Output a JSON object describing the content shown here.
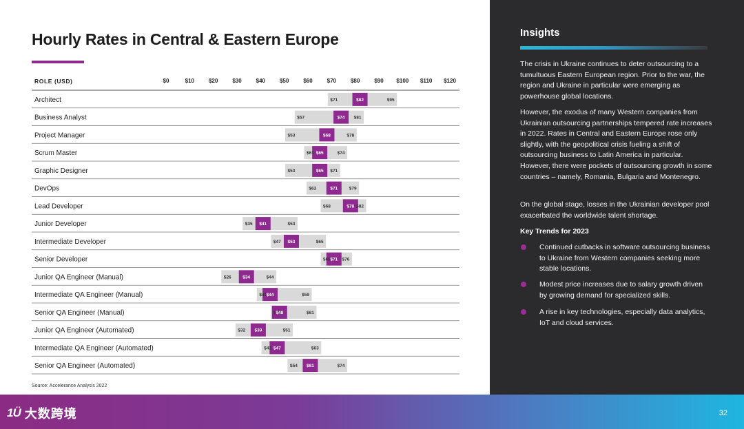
{
  "title": "Hourly Rates in Central & Eastern Europe",
  "role_header": "ROLE (USD)",
  "source": "Source: Accelerance Analysis 2022",
  "chart_data": {
    "type": "range",
    "title": "Hourly Rates in Central & Eastern Europe",
    "xlabel": "",
    "ylabel": "ROLE (USD)",
    "xlim": [
      0,
      120
    ],
    "tick_values": [
      0,
      10,
      20,
      30,
      40,
      50,
      60,
      70,
      80,
      90,
      100,
      110,
      120
    ],
    "tick_labels": [
      "$0",
      "$10",
      "$20",
      "$30",
      "$40",
      "$50",
      "$60",
      "$70",
      "$80",
      "$90",
      "$100",
      "$110",
      "$120"
    ],
    "rows": [
      {
        "role": "Architect",
        "low": 71,
        "mid": 82,
        "high": 95,
        "low_label": "$71",
        "mid_label": "$82",
        "high_label": "$95"
      },
      {
        "role": "Business Analyst",
        "low": 57,
        "mid": 74,
        "high": 81,
        "low_label": "$57",
        "mid_label": "$74",
        "high_label": "$81"
      },
      {
        "role": "Project Manager",
        "low": 53,
        "mid": 68,
        "high": 78,
        "low_label": "$53",
        "mid_label": "$68",
        "high_label": "$78"
      },
      {
        "role": "Scrum Master",
        "low": 61,
        "mid": 65,
        "high": 74,
        "low_label": "$61",
        "mid_label": "$65",
        "high_label": "$74"
      },
      {
        "role": "Graphic Designer",
        "low": 53,
        "mid": 65,
        "high": 71,
        "low_label": "$53",
        "mid_label": "$65",
        "high_label": "$71"
      },
      {
        "role": "DevOps",
        "low": 62,
        "mid": 71,
        "high": 79,
        "low_label": "$62",
        "mid_label": "$71",
        "high_label": "$79"
      },
      {
        "role": "Lead Developer",
        "low": 68,
        "mid": 78,
        "high": 82,
        "low_label": "$68",
        "mid_label": "$78",
        "high_label": "$82"
      },
      {
        "role": "Junior Developer",
        "low": 35,
        "mid": 41,
        "high": 53,
        "low_label": "$35",
        "mid_label": "$41",
        "high_label": "$53"
      },
      {
        "role": "Intermediate Developer",
        "low": 47,
        "mid": 53,
        "high": 65,
        "low_label": "$47",
        "mid_label": "$53",
        "high_label": "$65"
      },
      {
        "role": "Senior Developer",
        "low": 68,
        "mid": 71,
        "high": 76,
        "low_label": "$68",
        "mid_label": "$71",
        "high_label": "$76"
      },
      {
        "role": "Junior QA Engineer (Manual)",
        "low": 26,
        "mid": 34,
        "high": 44,
        "low_label": "$26",
        "mid_label": "$34",
        "high_label": "$44"
      },
      {
        "role": "Intermediate QA Engineer (Manual)",
        "low": 41,
        "mid": 44,
        "high": 59,
        "low_label": "$41",
        "mid_label": "$44",
        "high_label": "$59"
      },
      {
        "role": "Senior QA Engineer (Manual)",
        "low": 47,
        "mid": 48,
        "high": 61,
        "low_label": "$47",
        "mid_label": "$48",
        "high_label": "$61"
      },
      {
        "role": "Junior QA Engineer (Automated)",
        "low": 32,
        "mid": 39,
        "high": 51,
        "low_label": "$32",
        "mid_label": "$39",
        "high_label": "$51"
      },
      {
        "role": "Intermediate QA Engineer (Automated)",
        "low": 43,
        "mid": 47,
        "high": 63,
        "low_label": "$43",
        "mid_label": "$47",
        "high_label": "$63"
      },
      {
        "role": "Senior QA Engineer (Automated)",
        "low": 54,
        "mid": 61,
        "high": 74,
        "low_label": "$54",
        "mid_label": "$61",
        "high_label": "$74"
      }
    ]
  },
  "insights": {
    "title": "Insights",
    "paragraphs": [
      "The crisis in Ukraine continues to deter outsourcing to a tumultuous Eastern European region. Prior to the war, the region and Ukraine in particular were emerging as powerhouse global locations.",
      "However, the exodus of many Western companies from Ukrainian outsourcing partnerships tempered rate increases in 2022. Rates in Central and Eastern Europe rose only slightly, with the geopolitical crisis fueling a shift of outsourcing business to Latin America in particular. However, there were pockets of outsourcing growth in some countries – namely, Romania, Bulgaria and Montenegro.",
      "On the global stage, losses in the Ukrainian developer pool exacerbated the worldwide talent shortage."
    ],
    "trends_heading": "Key Trends for 2023",
    "trends": [
      "Continued cutbacks in software outsourcing business to Ukraine from Western companies seeking more stable locations.",
      "Modest price increases due to salary growth driven by growing demand for specialized skills.",
      "A rise in key technologies, especially data analytics, IoT and cloud services."
    ]
  },
  "footer": {
    "logo_mark": "1Ü",
    "logo_text": "大数跨境",
    "page_number": "32"
  },
  "colors": {
    "accent": "#8e2a8f",
    "range_bar": "#d9d9d9",
    "right_panel_bg": "#2b2b2d",
    "insight_bar": "#29b8d9"
  }
}
